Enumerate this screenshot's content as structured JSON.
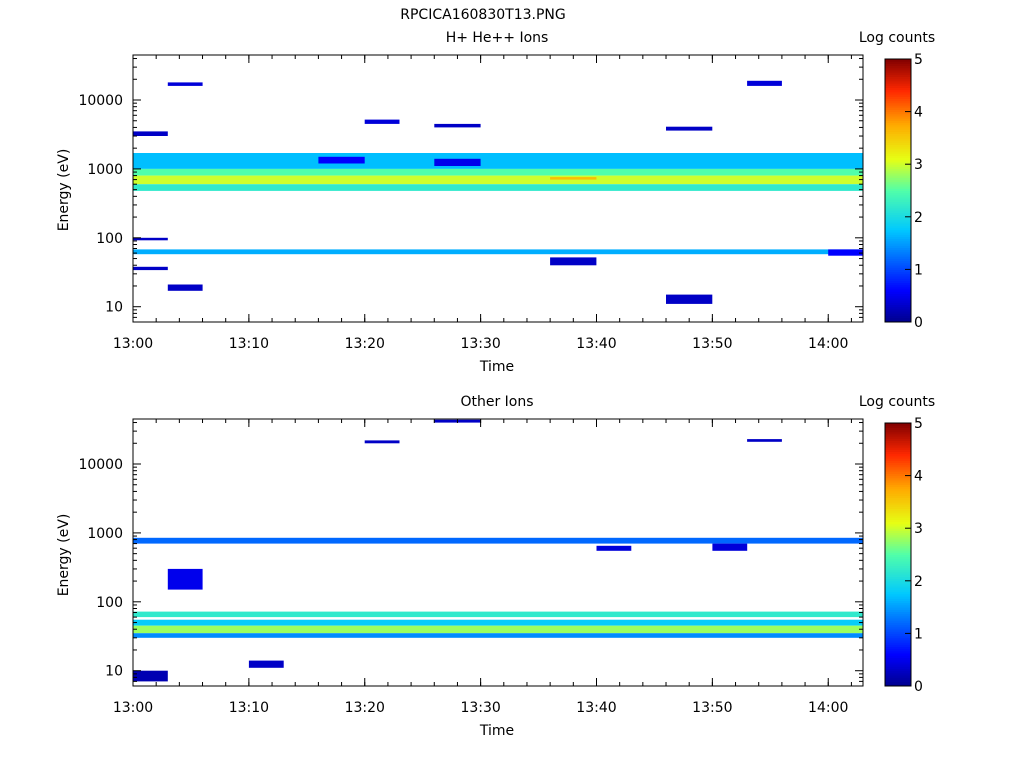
{
  "figure": {
    "title": "RPCICA160830T13.PNG"
  },
  "chart_data": [
    {
      "type": "heatmap",
      "title": "H+ He++ Ions",
      "xlabel": "Time",
      "ylabel": "Energy (eV)",
      "yscale": "log",
      "ylim": [
        6,
        45000
      ],
      "xlim": [
        "13:00",
        "14:03"
      ],
      "x_ticks": [
        "13:00",
        "13:10",
        "13:20",
        "13:30",
        "13:40",
        "13:50",
        "14:00"
      ],
      "y_ticks": [
        "10",
        "100",
        "1000",
        "10000"
      ],
      "colorbar": {
        "label": "Log counts",
        "ticks": [
          "0",
          "1",
          "2",
          "3",
          "4",
          "5"
        ],
        "range": [
          0,
          5
        ]
      },
      "time_bins": [
        "13:00",
        "13:03",
        "13:06",
        "13:10",
        "13:13",
        "13:16",
        "13:20",
        "13:23",
        "13:26",
        "13:30",
        "13:33",
        "13:36",
        "13:40",
        "13:43",
        "13:46",
        "13:50",
        "13:53",
        "13:56",
        "14:00"
      ],
      "cells": [
        {
          "t": [
            0,
            19
          ],
          "e": [
            1000,
            1700
          ],
          "v": 1.7
        },
        {
          "t": [
            0,
            19
          ],
          "e": [
            800,
            1000
          ],
          "v": 2.5
        },
        {
          "t": [
            0,
            19
          ],
          "e": [
            600,
            800
          ],
          "v": 3.0
        },
        {
          "t": [
            0,
            19
          ],
          "e": [
            480,
            600
          ],
          "v": 2.2
        },
        {
          "t": [
            0,
            19
          ],
          "e": [
            58,
            68
          ],
          "v": 1.6
        },
        {
          "t": [
            0,
            1
          ],
          "e": [
            3000,
            3500
          ],
          "v": 0.3
        },
        {
          "t": [
            0,
            1
          ],
          "e": [
            92,
            100
          ],
          "v": 0.3
        },
        {
          "t": [
            0,
            1
          ],
          "e": [
            34,
            38
          ],
          "v": 0.3
        },
        {
          "t": [
            1,
            2
          ],
          "e": [
            17,
            21
          ],
          "v": 0.3
        },
        {
          "t": [
            1,
            2
          ],
          "e": [
            16000,
            18000
          ],
          "v": 0.4
        },
        {
          "t": [
            5,
            6
          ],
          "e": [
            1200,
            1500
          ],
          "v": 0.6
        },
        {
          "t": [
            6,
            7
          ],
          "e": [
            4500,
            5200
          ],
          "v": 0.4
        },
        {
          "t": [
            8,
            9
          ],
          "e": [
            1100,
            1400
          ],
          "v": 0.5
        },
        {
          "t": [
            8,
            9
          ],
          "e": [
            4000,
            4500
          ],
          "v": 0.3
        },
        {
          "t": [
            11,
            12
          ],
          "e": [
            40,
            52
          ],
          "v": 0.3
        },
        {
          "t": [
            11,
            12
          ],
          "e": [
            700,
            760
          ],
          "v": 3.6
        },
        {
          "t": [
            14,
            15
          ],
          "e": [
            11,
            15
          ],
          "v": 0.3
        },
        {
          "t": [
            14,
            15
          ],
          "e": [
            3600,
            4100
          ],
          "v": 0.3
        },
        {
          "t": [
            16,
            17
          ],
          "e": [
            16000,
            19000
          ],
          "v": 0.4
        },
        {
          "t": [
            18,
            19
          ],
          "e": [
            55,
            68
          ],
          "v": 0.6
        }
      ]
    },
    {
      "type": "heatmap",
      "title": "Other Ions",
      "xlabel": "Time",
      "ylabel": "Energy (eV)",
      "yscale": "log",
      "ylim": [
        6,
        45000
      ],
      "xlim": [
        "13:00",
        "14:03"
      ],
      "x_ticks": [
        "13:00",
        "13:10",
        "13:20",
        "13:30",
        "13:40",
        "13:50",
        "14:00"
      ],
      "y_ticks": [
        "10",
        "100",
        "1000",
        "10000"
      ],
      "colorbar": {
        "label": "Log counts",
        "ticks": [
          "0",
          "1",
          "2",
          "3",
          "4",
          "5"
        ],
        "range": [
          0,
          5
        ]
      },
      "time_bins": [
        "13:00",
        "13:03",
        "13:06",
        "13:10",
        "13:13",
        "13:16",
        "13:20",
        "13:23",
        "13:26",
        "13:30",
        "13:33",
        "13:36",
        "13:40",
        "13:43",
        "13:46",
        "13:50",
        "13:53",
        "13:56",
        "14:00"
      ],
      "cells": [
        {
          "t": [
            0,
            19
          ],
          "e": [
            700,
            850
          ],
          "v": 1.2
        },
        {
          "t": [
            0,
            19
          ],
          "e": [
            60,
            72
          ],
          "v": 2.2
        },
        {
          "t": [
            0,
            19
          ],
          "e": [
            45,
            55
          ],
          "v": 1.8
        },
        {
          "t": [
            0,
            19
          ],
          "e": [
            35,
            45
          ],
          "v": 2.8
        },
        {
          "t": [
            0,
            19
          ],
          "e": [
            30,
            35
          ],
          "v": 1.4
        },
        {
          "t": [
            0,
            1
          ],
          "e": [
            7,
            10
          ],
          "v": 0.2
        },
        {
          "t": [
            1,
            2
          ],
          "e": [
            150,
            300
          ],
          "v": 0.5
        },
        {
          "t": [
            3,
            4
          ],
          "e": [
            11,
            14
          ],
          "v": 0.3
        },
        {
          "t": [
            6,
            7
          ],
          "e": [
            20000,
            22000
          ],
          "v": 0.3
        },
        {
          "t": [
            8,
            9
          ],
          "e": [
            40000,
            44000
          ],
          "v": 0.3
        },
        {
          "t": [
            12,
            13
          ],
          "e": [
            550,
            650
          ],
          "v": 0.4
        },
        {
          "t": [
            15,
            16
          ],
          "e": [
            550,
            700
          ],
          "v": 0.4
        },
        {
          "t": [
            16,
            17
          ],
          "e": [
            21000,
            23000
          ],
          "v": 0.3
        }
      ]
    }
  ]
}
